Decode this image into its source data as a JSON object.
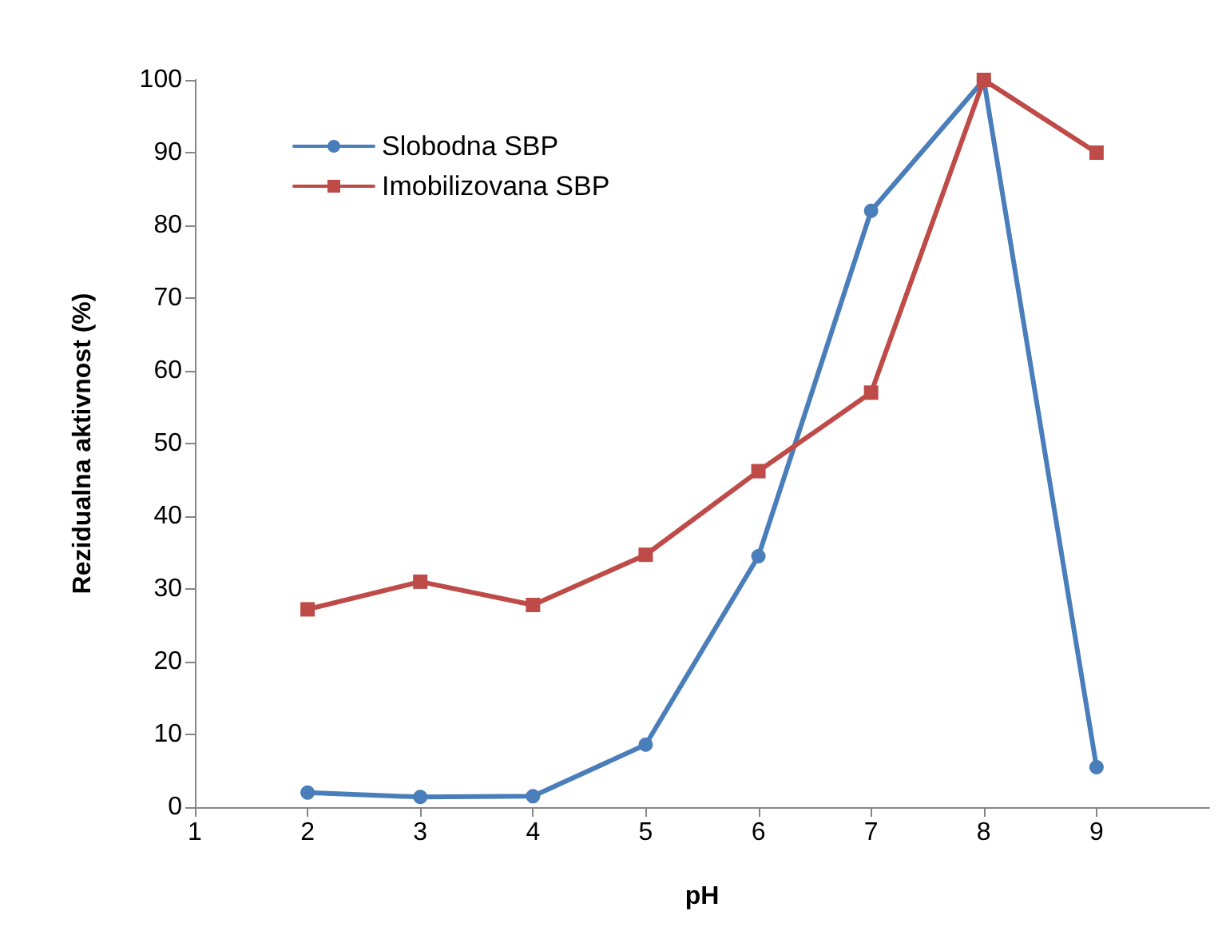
{
  "chart_data": {
    "type": "line",
    "xlabel": "pH",
    "ylabel": "Rezidualna aktivnost (%)",
    "x": [
      2,
      3,
      4,
      5,
      6,
      7,
      8,
      9
    ],
    "series": [
      {
        "name": "Slobodna SBP",
        "color": "#4a7ebb",
        "marker": "circle",
        "values": [
          2,
          1.4,
          1.5,
          8.6,
          34.5,
          82,
          100,
          5.5
        ]
      },
      {
        "name": "Imobilizovana SBP",
        "color": "#be4b48",
        "marker": "square",
        "values": [
          27.2,
          31,
          27.8,
          34.7,
          46.2,
          57,
          100,
          90
        ]
      }
    ],
    "xlim": [
      1,
      10
    ],
    "xticks": [
      1,
      2,
      3,
      4,
      5,
      6,
      7,
      8,
      9
    ],
    "ylim": [
      0,
      100
    ],
    "yticks": [
      0,
      10,
      20,
      30,
      40,
      50,
      60,
      70,
      80,
      90,
      100
    ],
    "grid": false,
    "legend": "top left",
    "line_style": "solid"
  }
}
